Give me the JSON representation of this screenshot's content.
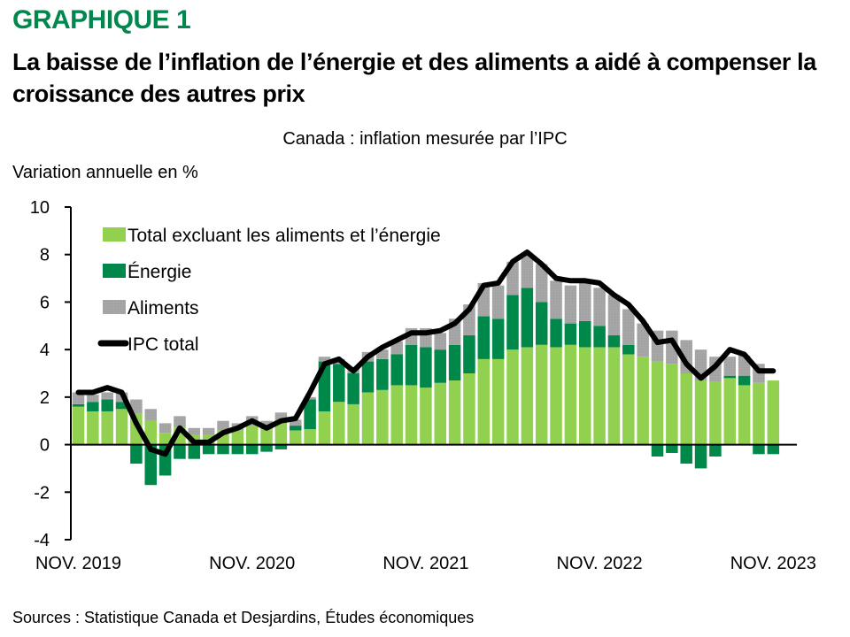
{
  "header": {
    "kicker": "GRAPHIQUE 1",
    "title": "La baisse de l’inflation de l’énergie et des aliments a aidé à compenser la croissance des autres prix",
    "subtitle": "Canada : inflation mesurée par l’IPC",
    "ylabel": "Variation annuelle en %"
  },
  "footer": {
    "source": "Sources : Statistique Canada et Desjardins, Études économiques"
  },
  "colors": {
    "core": "#92d050",
    "energy": "#00874a",
    "food": "#a6a6a6",
    "cpi": "#000000",
    "kicker": "#00874d"
  },
  "chart_data": {
    "type": "bar",
    "stacked": true,
    "title": "Canada : inflation mesurée par l’IPC",
    "ylabel": "Variation annuelle en %",
    "xlabel": "",
    "ylim": [
      -4,
      10
    ],
    "yticks": [
      -4,
      -2,
      0,
      2,
      4,
      6,
      8,
      10
    ],
    "xtick_labels": [
      {
        "index": 0,
        "label": "NOV. 2019"
      },
      {
        "index": 12,
        "label": "NOV. 2020"
      },
      {
        "index": 24,
        "label": "NOV. 2021"
      },
      {
        "index": 36,
        "label": "NOV. 2022"
      },
      {
        "index": 48,
        "label": "NOV. 2023"
      }
    ],
    "legend_position": "top-left",
    "grid": false,
    "categories": [
      "2019-11",
      "2019-12",
      "2020-01",
      "2020-02",
      "2020-03",
      "2020-04",
      "2020-05",
      "2020-06",
      "2020-07",
      "2020-08",
      "2020-09",
      "2020-10",
      "2020-11",
      "2020-12",
      "2021-01",
      "2021-02",
      "2021-03",
      "2021-04",
      "2021-05",
      "2021-06",
      "2021-07",
      "2021-08",
      "2021-09",
      "2021-10",
      "2021-11",
      "2021-12",
      "2022-01",
      "2022-02",
      "2022-03",
      "2022-04",
      "2022-05",
      "2022-06",
      "2022-07",
      "2022-08",
      "2022-09",
      "2022-10",
      "2022-11",
      "2022-12",
      "2023-01",
      "2023-02",
      "2023-03",
      "2023-04",
      "2023-05",
      "2023-06",
      "2023-07",
      "2023-08",
      "2023-09",
      "2023-10",
      "2023-11"
    ],
    "series": [
      {
        "name": "Total excluant les aliments et l’énergie",
        "key": "core",
        "kind": "bar",
        "values": [
          1.6,
          1.4,
          1.4,
          1.5,
          1.3,
          1.0,
          0.5,
          0.75,
          0.4,
          0.4,
          0.6,
          0.6,
          0.8,
          0.65,
          1.05,
          0.6,
          0.65,
          1.4,
          1.8,
          1.7,
          2.2,
          2.3,
          2.5,
          2.5,
          2.4,
          2.6,
          2.7,
          3.0,
          3.6,
          3.6,
          4.0,
          4.1,
          4.2,
          4.1,
          4.2,
          4.1,
          4.1,
          4.1,
          3.8,
          3.7,
          3.5,
          3.4,
          3.0,
          2.7,
          2.65,
          2.8,
          2.5,
          2.6,
          2.7
        ]
      },
      {
        "name": "Énergie",
        "key": "energy",
        "kind": "bar",
        "values": [
          0.1,
          0.4,
          0.5,
          0.3,
          -0.8,
          -1.7,
          -1.3,
          -0.6,
          -0.6,
          -0.4,
          -0.4,
          -0.4,
          -0.4,
          -0.3,
          -0.2,
          0.2,
          1.25,
          2.1,
          1.6,
          1.3,
          1.3,
          1.3,
          1.3,
          1.7,
          1.7,
          1.4,
          1.5,
          1.6,
          1.8,
          1.7,
          2.3,
          2.5,
          1.8,
          1.2,
          0.9,
          1.1,
          0.9,
          0.5,
          0.4,
          0.0,
          -0.5,
          -0.35,
          -0.8,
          -1.0,
          -0.5,
          0.1,
          0.4,
          -0.4,
          -0.4
        ]
      },
      {
        "name": "Aliments",
        "key": "food",
        "kind": "bar",
        "values": [
          0.5,
          0.3,
          0.3,
          0.4,
          0.6,
          0.5,
          0.4,
          0.45,
          0.3,
          0.3,
          0.4,
          0.3,
          0.4,
          0.35,
          0.3,
          0.25,
          0.1,
          0.2,
          0.2,
          0.2,
          0.4,
          0.4,
          0.55,
          0.7,
          0.8,
          0.7,
          1.1,
          1.3,
          1.4,
          1.4,
          1.4,
          1.4,
          1.6,
          1.6,
          1.6,
          1.6,
          1.6,
          1.7,
          1.5,
          1.4,
          1.3,
          1.4,
          1.4,
          1.3,
          1.05,
          0.8,
          0.85,
          0.8,
          0.0
        ]
      },
      {
        "name": "IPC total",
        "key": "cpi",
        "kind": "line",
        "values": [
          2.2,
          2.2,
          2.4,
          2.2,
          0.9,
          -0.2,
          -0.4,
          0.7,
          0.1,
          0.1,
          0.5,
          0.7,
          1.0,
          0.7,
          1.0,
          1.1,
          2.2,
          3.4,
          3.6,
          3.1,
          3.7,
          4.1,
          4.4,
          4.7,
          4.7,
          4.8,
          5.1,
          5.7,
          6.7,
          6.8,
          7.7,
          8.1,
          7.6,
          7.0,
          6.9,
          6.9,
          6.8,
          6.3,
          5.9,
          5.2,
          4.3,
          4.4,
          3.4,
          2.8,
          3.3,
          4.0,
          3.8,
          3.1,
          3.1
        ]
      }
    ]
  }
}
